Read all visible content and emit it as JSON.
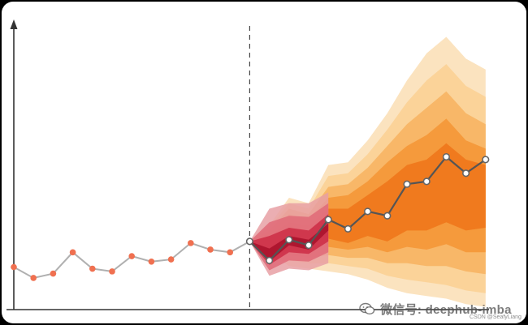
{
  "chart_data": {
    "type": "line",
    "title": "",
    "xlabel": "",
    "ylabel": "",
    "grid": false,
    "forecast_origin_step": 12,
    "history": {
      "x": [
        0,
        1,
        2,
        3,
        4,
        5,
        6,
        7,
        8,
        9,
        10,
        11,
        12
      ],
      "y": [
        0.78,
        0.58,
        0.66,
        1.05,
        0.75,
        0.7,
        0.98,
        0.88,
        0.92,
        1.22,
        1.1,
        1.05,
        1.25
      ]
    },
    "forecast": {
      "x": [
        12,
        13,
        14,
        15,
        16,
        17,
        18,
        19,
        20,
        21,
        22,
        23,
        24
      ],
      "y": [
        1.25,
        0.9,
        1.28,
        1.18,
        1.65,
        1.48,
        1.8,
        1.72,
        2.3,
        2.35,
        2.8,
        2.5,
        2.75
      ]
    },
    "bands_note": "",
    "bands": [
      {
        "level": 1,
        "color": "#fbe3bf",
        "lower": [
          1.25,
          1.05,
          0.8,
          0.75,
          0.7,
          0.65,
          0.55,
          0.4,
          0.3,
          0.25,
          0.2,
          0.1,
          0.05
        ],
        "upper": [
          1.25,
          1.55,
          2.05,
          1.95,
          2.65,
          2.7,
          3.1,
          3.6,
          4.2,
          4.7,
          5.0,
          4.6,
          4.4
        ]
      },
      {
        "level": 2,
        "color": "#fbd399",
        "lower": [
          1.25,
          1.0,
          0.9,
          0.85,
          0.85,
          0.8,
          0.75,
          0.62,
          0.55,
          0.5,
          0.45,
          0.35,
          0.3
        ],
        "upper": [
          1.25,
          1.5,
          1.95,
          1.85,
          2.45,
          2.5,
          2.85,
          3.3,
          3.8,
          4.2,
          4.5,
          4.1,
          3.9
        ]
      },
      {
        "level": 3,
        "color": "#f8b768",
        "lower": [
          1.25,
          0.95,
          1.0,
          0.95,
          1.0,
          0.95,
          0.95,
          0.85,
          0.85,
          0.8,
          0.8,
          0.7,
          0.65
        ],
        "upper": [
          1.25,
          1.45,
          1.85,
          1.75,
          2.25,
          2.3,
          2.6,
          3.0,
          3.4,
          3.7,
          4.0,
          3.6,
          3.4
        ]
      },
      {
        "level": 4,
        "color": "#f59a3c",
        "lower": [
          1.25,
          0.92,
          1.08,
          1.05,
          1.15,
          1.1,
          1.15,
          1.05,
          1.15,
          1.1,
          1.2,
          1.05,
          1.05
        ],
        "upper": [
          1.25,
          1.4,
          1.75,
          1.65,
          2.05,
          2.1,
          2.35,
          2.7,
          3.0,
          3.2,
          3.5,
          3.1,
          2.95
        ]
      },
      {
        "level": 5,
        "color": "#f07a1e",
        "lower": [
          1.25,
          0.9,
          1.15,
          1.1,
          1.3,
          1.22,
          1.35,
          1.25,
          1.45,
          1.45,
          1.6,
          1.45,
          1.5
        ],
        "upper": [
          1.25,
          1.35,
          1.6,
          1.55,
          1.85,
          1.85,
          2.1,
          2.35,
          2.65,
          2.75,
          3.05,
          2.75,
          2.65
        ]
      }
    ],
    "inner_bands": [
      {
        "level": 1,
        "color": "#e8a0a4",
        "lower": [
          1.25,
          0.62,
          0.75,
          0.72,
          0.85
        ],
        "upper": [
          1.25,
          1.85,
          1.95,
          1.95,
          2.15
        ]
      },
      {
        "level": 2,
        "color": "#e06a78",
        "lower": [
          1.25,
          0.72,
          0.9,
          0.88,
          1.05
        ],
        "upper": [
          1.25,
          1.6,
          1.72,
          1.7,
          1.95
        ]
      },
      {
        "level": 3,
        "color": "#cc2d45",
        "lower": [
          1.25,
          0.82,
          1.05,
          1.02,
          1.25
        ],
        "upper": [
          1.25,
          1.35,
          1.5,
          1.45,
          1.75
        ]
      },
      {
        "level": 4,
        "color": "#a8102a",
        "lower": [
          1.25,
          0.88,
          1.18,
          1.1,
          1.45
        ],
        "upper": [
          1.25,
          1.12,
          1.35,
          1.28,
          1.58
        ]
      }
    ],
    "history_color": "#f07050",
    "history_line_color": "#b0b0b0",
    "forecast_line_color": "#555555",
    "ylim": [
      0,
      5.2
    ],
    "xlim": [
      0,
      25
    ]
  },
  "watermark": {
    "text": "微信号: deephub-imba",
    "credit": "CSDN @SeafyLiang"
  }
}
